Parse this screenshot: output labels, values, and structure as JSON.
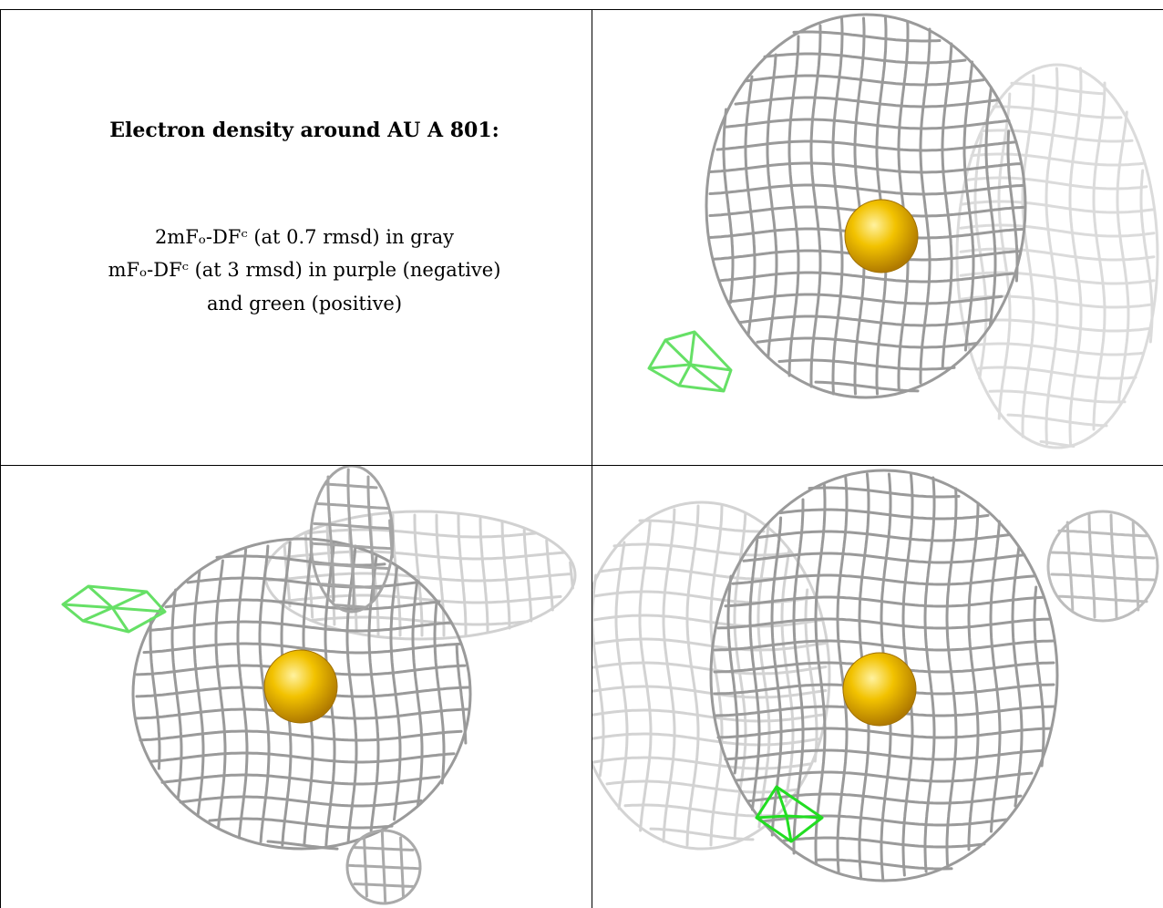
{
  "caption": {
    "title": "Electron density around AU A 801:",
    "line1": "2mFₒ-DFᶜ (at 0.7 rmsd) in gray",
    "line2": "mFₒ-DFᶜ (at 3 rmsd) in purple (negative)",
    "line3": "and green (positive)"
  },
  "colors": {
    "mesh_gray": "#9a9a9a",
    "mesh_light": "#cfcfcf",
    "positive_green": "#33dd33",
    "atom_gold": "#f2c200"
  },
  "views": [
    {
      "name": "view-top-right",
      "atom": "AU A 801"
    },
    {
      "name": "view-bottom-left",
      "atom": "AU A 801"
    },
    {
      "name": "view-bottom-right",
      "atom": "AU A 801"
    }
  ]
}
